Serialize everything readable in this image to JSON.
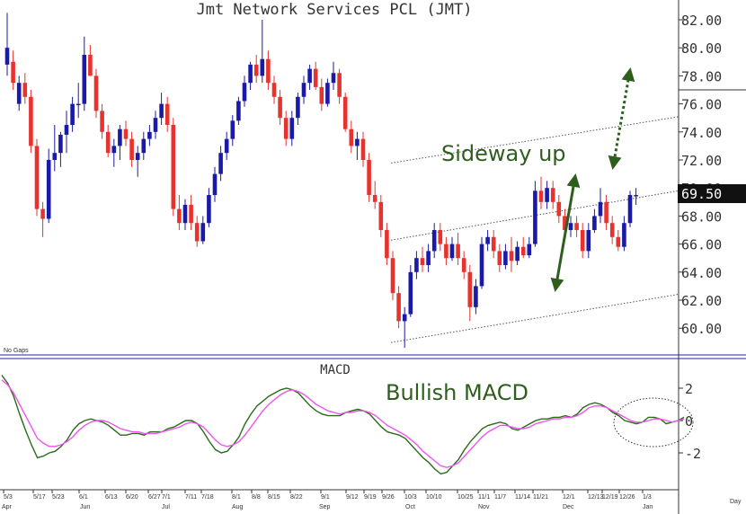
{
  "chart_data": [
    {
      "type": "candlestick",
      "title": "Jmt Network Services PCL (JMT)",
      "y_ticks": [
        "82.00",
        "80.00",
        "78.00",
        "76.00",
        "74.00",
        "72.00",
        "70.00",
        "68.00",
        "66.00",
        "64.00",
        "62.00",
        "60.00"
      ],
      "ylim": [
        58.5,
        83.2
      ],
      "last_price": "69.50",
      "note": "No Gaps",
      "x_ticks": [
        "5/3",
        "5/17",
        "5/23",
        "6/1",
        "6/13",
        "6/20",
        "6/27",
        "7/1",
        "7/11",
        "7/18",
        "8/1",
        "8/8",
        "8/15",
        "8/22",
        "9/1",
        "9/12",
        "9/19",
        "9/26",
        "10/3",
        "10/10",
        "10/25",
        "11/1",
        "11/7",
        "11/14",
        "11/21",
        "12/1",
        "12/13",
        "12/19",
        "12/26",
        "1/3"
      ],
      "months": [
        "Apr",
        "Jun",
        "Jul",
        "Aug",
        "Sep",
        "Oct",
        "Nov",
        "Dec",
        "Jan"
      ],
      "x_unit": "Day",
      "ohlc": [
        {
          "o": 78.8,
          "h": 82.5,
          "l": 78.0,
          "c": 80.0
        },
        {
          "o": 79.0,
          "h": 79.8,
          "l": 77.0,
          "c": 77.5
        },
        {
          "o": 76.0,
          "h": 78.0,
          "l": 75.5,
          "c": 77.5
        },
        {
          "o": 77.5,
          "h": 78.2,
          "l": 76.0,
          "c": 76.5
        },
        {
          "o": 76.5,
          "h": 77.0,
          "l": 72.5,
          "c": 73.0
        },
        {
          "o": 73.0,
          "h": 73.5,
          "l": 68.0,
          "c": 68.5
        },
        {
          "o": 68.5,
          "h": 69.0,
          "l": 66.5,
          "c": 67.8
        },
        {
          "o": 67.8,
          "h": 72.8,
          "l": 67.5,
          "c": 72.0
        },
        {
          "o": 72.0,
          "h": 74.5,
          "l": 71.2,
          "c": 72.5
        },
        {
          "o": 72.5,
          "h": 74.0,
          "l": 71.5,
          "c": 73.8
        },
        {
          "o": 73.8,
          "h": 75.5,
          "l": 72.5,
          "c": 74.5
        },
        {
          "o": 74.5,
          "h": 76.5,
          "l": 74.0,
          "c": 76.0
        },
        {
          "o": 76.0,
          "h": 77.5,
          "l": 75.0,
          "c": 76.0
        },
        {
          "o": 76.0,
          "h": 80.8,
          "l": 75.5,
          "c": 79.5
        },
        {
          "o": 79.5,
          "h": 80.2,
          "l": 78.0,
          "c": 78.0
        },
        {
          "o": 78.0,
          "h": 78.5,
          "l": 75.0,
          "c": 75.5
        },
        {
          "o": 75.5,
          "h": 76.0,
          "l": 73.5,
          "c": 74.0
        },
        {
          "o": 74.0,
          "h": 74.5,
          "l": 72.2,
          "c": 72.5
        },
        {
          "o": 72.5,
          "h": 73.5,
          "l": 71.5,
          "c": 73.0
        },
        {
          "o": 73.0,
          "h": 74.5,
          "l": 72.0,
          "c": 74.2
        },
        {
          "o": 74.2,
          "h": 74.8,
          "l": 73.0,
          "c": 73.5
        },
        {
          "o": 73.5,
          "h": 74.0,
          "l": 71.5,
          "c": 72.0
        },
        {
          "o": 72.0,
          "h": 73.0,
          "l": 70.8,
          "c": 72.5
        },
        {
          "o": 72.5,
          "h": 74.0,
          "l": 72.0,
          "c": 73.5
        },
        {
          "o": 73.5,
          "h": 74.5,
          "l": 73.0,
          "c": 74.0
        },
        {
          "o": 74.0,
          "h": 75.5,
          "l": 73.5,
          "c": 75.0
        },
        {
          "o": 75.0,
          "h": 76.8,
          "l": 74.5,
          "c": 76.0
        },
        {
          "o": 76.0,
          "h": 76.5,
          "l": 74.0,
          "c": 74.5
        },
        {
          "o": 74.5,
          "h": 75.0,
          "l": 68.0,
          "c": 68.5
        },
        {
          "o": 68.5,
          "h": 69.5,
          "l": 67.0,
          "c": 67.5
        },
        {
          "o": 67.5,
          "h": 69.2,
          "l": 67.0,
          "c": 68.8
        },
        {
          "o": 68.8,
          "h": 69.5,
          "l": 67.0,
          "c": 67.5
        },
        {
          "o": 67.5,
          "h": 68.0,
          "l": 65.8,
          "c": 66.2
        },
        {
          "o": 66.2,
          "h": 68.0,
          "l": 66.0,
          "c": 67.5
        },
        {
          "o": 67.5,
          "h": 70.0,
          "l": 67.2,
          "c": 69.5
        },
        {
          "o": 69.5,
          "h": 71.5,
          "l": 69.0,
          "c": 71.0
        },
        {
          "o": 71.0,
          "h": 73.0,
          "l": 70.5,
          "c": 72.5
        },
        {
          "o": 72.5,
          "h": 74.0,
          "l": 72.0,
          "c": 73.5
        },
        {
          "o": 73.5,
          "h": 75.2,
          "l": 73.0,
          "c": 74.8
        },
        {
          "o": 74.8,
          "h": 76.5,
          "l": 74.5,
          "c": 76.2
        },
        {
          "o": 76.2,
          "h": 78.0,
          "l": 75.8,
          "c": 77.5
        },
        {
          "o": 77.5,
          "h": 79.0,
          "l": 77.0,
          "c": 78.8
        },
        {
          "o": 78.8,
          "h": 79.5,
          "l": 77.5,
          "c": 78.0
        },
        {
          "o": 78.0,
          "h": 82.0,
          "l": 77.5,
          "c": 79.2
        },
        {
          "o": 79.2,
          "h": 79.8,
          "l": 77.0,
          "c": 77.5
        },
        {
          "o": 77.5,
          "h": 78.0,
          "l": 76.0,
          "c": 76.5
        },
        {
          "o": 76.5,
          "h": 77.0,
          "l": 74.5,
          "c": 75.0
        },
        {
          "o": 75.0,
          "h": 75.5,
          "l": 73.0,
          "c": 73.5
        },
        {
          "o": 73.5,
          "h": 75.5,
          "l": 73.0,
          "c": 75.0
        },
        {
          "o": 75.0,
          "h": 76.8,
          "l": 74.5,
          "c": 76.5
        },
        {
          "o": 76.5,
          "h": 78.0,
          "l": 76.0,
          "c": 77.5
        },
        {
          "o": 77.5,
          "h": 78.8,
          "l": 77.0,
          "c": 78.5
        },
        {
          "o": 78.5,
          "h": 79.0,
          "l": 77.0,
          "c": 77.2
        },
        {
          "o": 77.2,
          "h": 77.8,
          "l": 75.5,
          "c": 76.0
        },
        {
          "o": 76.0,
          "h": 77.8,
          "l": 75.8,
          "c": 77.5
        },
        {
          "o": 77.5,
          "h": 79.0,
          "l": 77.0,
          "c": 78.2
        },
        {
          "o": 78.2,
          "h": 78.5,
          "l": 76.0,
          "c": 76.5
        },
        {
          "o": 76.5,
          "h": 76.8,
          "l": 74.0,
          "c": 74.2
        },
        {
          "o": 74.2,
          "h": 74.8,
          "l": 72.5,
          "c": 73.0
        },
        {
          "o": 73.0,
          "h": 74.0,
          "l": 72.0,
          "c": 73.5
        },
        {
          "o": 73.5,
          "h": 74.0,
          "l": 71.5,
          "c": 72.0
        },
        {
          "o": 72.0,
          "h": 72.5,
          "l": 69.0,
          "c": 69.5
        },
        {
          "o": 69.5,
          "h": 70.5,
          "l": 68.5,
          "c": 69.0
        },
        {
          "o": 69.0,
          "h": 69.5,
          "l": 66.5,
          "c": 67.0
        },
        {
          "o": 67.0,
          "h": 67.5,
          "l": 64.5,
          "c": 65.0
        },
        {
          "o": 65.0,
          "h": 65.5,
          "l": 62.0,
          "c": 62.5
        },
        {
          "o": 62.5,
          "h": 63.0,
          "l": 60.0,
          "c": 60.5
        },
        {
          "o": 60.5,
          "h": 61.5,
          "l": 58.6,
          "c": 61.0
        },
        {
          "o": 61.0,
          "h": 64.5,
          "l": 60.8,
          "c": 64.0
        },
        {
          "o": 64.0,
          "h": 65.5,
          "l": 63.5,
          "c": 65.0
        },
        {
          "o": 65.0,
          "h": 65.8,
          "l": 64.0,
          "c": 64.5
        },
        {
          "o": 64.5,
          "h": 66.0,
          "l": 64.0,
          "c": 65.5
        },
        {
          "o": 65.5,
          "h": 67.5,
          "l": 65.0,
          "c": 67.0
        },
        {
          "o": 67.0,
          "h": 67.5,
          "l": 65.5,
          "c": 66.0
        },
        {
          "o": 66.0,
          "h": 66.5,
          "l": 64.5,
          "c": 65.0
        },
        {
          "o": 65.0,
          "h": 66.5,
          "l": 64.8,
          "c": 66.0
        },
        {
          "o": 66.0,
          "h": 66.8,
          "l": 64.5,
          "c": 65.0
        },
        {
          "o": 65.0,
          "h": 65.5,
          "l": 63.5,
          "c": 64.0
        },
        {
          "o": 64.0,
          "h": 64.5,
          "l": 60.5,
          "c": 61.5
        },
        {
          "o": 61.5,
          "h": 63.5,
          "l": 61.0,
          "c": 63.0
        },
        {
          "o": 63.0,
          "h": 66.5,
          "l": 62.8,
          "c": 66.0
        },
        {
          "o": 66.0,
          "h": 67.0,
          "l": 65.5,
          "c": 66.5
        },
        {
          "o": 66.5,
          "h": 67.0,
          "l": 65.0,
          "c": 65.5
        },
        {
          "o": 65.5,
          "h": 66.0,
          "l": 64.0,
          "c": 64.5
        },
        {
          "o": 64.5,
          "h": 66.0,
          "l": 64.2,
          "c": 65.5
        },
        {
          "o": 65.5,
          "h": 66.5,
          "l": 64.0,
          "c": 64.8
        },
        {
          "o": 64.8,
          "h": 66.2,
          "l": 64.5,
          "c": 65.8
        },
        {
          "o": 65.8,
          "h": 66.5,
          "l": 65.0,
          "c": 65.2
        },
        {
          "o": 65.2,
          "h": 66.5,
          "l": 65.0,
          "c": 66.0
        },
        {
          "o": 66.0,
          "h": 70.5,
          "l": 65.8,
          "c": 69.8
        },
        {
          "o": 69.8,
          "h": 70.8,
          "l": 68.5,
          "c": 69.0
        },
        {
          "o": 69.0,
          "h": 70.5,
          "l": 68.5,
          "c": 70.0
        },
        {
          "o": 70.0,
          "h": 70.5,
          "l": 68.5,
          "c": 69.0
        },
        {
          "o": 69.0,
          "h": 69.5,
          "l": 67.5,
          "c": 68.0
        },
        {
          "o": 68.0,
          "h": 68.5,
          "l": 66.5,
          "c": 67.0
        },
        {
          "o": 67.0,
          "h": 68.0,
          "l": 66.5,
          "c": 67.5
        },
        {
          "o": 67.5,
          "h": 68.0,
          "l": 66.5,
          "c": 67.0
        },
        {
          "o": 67.0,
          "h": 67.5,
          "l": 65.0,
          "c": 65.5
        },
        {
          "o": 65.5,
          "h": 67.5,
          "l": 65.0,
          "c": 67.0
        },
        {
          "o": 67.0,
          "h": 68.5,
          "l": 66.8,
          "c": 68.0
        },
        {
          "o": 68.0,
          "h": 70.0,
          "l": 67.5,
          "c": 69.0
        },
        {
          "o": 69.0,
          "h": 69.5,
          "l": 67.0,
          "c": 67.5
        },
        {
          "o": 67.5,
          "h": 68.0,
          "l": 66.0,
          "c": 66.5
        },
        {
          "o": 66.5,
          "h": 67.0,
          "l": 65.5,
          "c": 65.8
        },
        {
          "o": 65.8,
          "h": 68.0,
          "l": 65.5,
          "c": 67.5
        },
        {
          "o": 67.5,
          "h": 69.8,
          "l": 67.2,
          "c": 69.5
        },
        {
          "o": 69.5,
          "h": 70.0,
          "l": 68.8,
          "c": 69.5
        }
      ],
      "channel_lines": [
        {
          "from": [
            0,
            59.0
          ],
          "to": [
            110,
            66.8
          ]
        },
        {
          "from": [
            0,
            66.3
          ],
          "to": [
            110,
            74.3
          ]
        },
        {
          "from": [
            0,
            71.8
          ],
          "to": [
            110,
            79.3
          ]
        }
      ],
      "annotations": [
        "Sideway up"
      ]
    },
    {
      "type": "line",
      "title": "MACD",
      "y_ticks": [
        "2",
        "0",
        "-2"
      ],
      "ylim": [
        -4.5,
        3.5
      ],
      "annotations": [
        "Bullish MACD"
      ],
      "series": [
        {
          "values": [
            2.8,
            2.3,
            1.5,
            0.4,
            -0.6,
            -1.5,
            -2.3,
            -2.2,
            -2.0,
            -1.9,
            -1.6,
            -1.2,
            -0.6,
            -0.2,
            0.0,
            0.1,
            0.0,
            -0.1,
            -0.3,
            -0.6,
            -0.9,
            -0.9,
            -0.8,
            -0.8,
            -0.9,
            -0.7,
            -0.7,
            -0.7,
            -0.5,
            -0.4,
            -0.2,
            0.0,
            0.0,
            -0.2,
            -0.7,
            -1.3,
            -1.8,
            -2.0,
            -1.9,
            -1.5,
            -1.0,
            -0.2,
            0.4,
            0.9,
            1.2,
            1.5,
            1.7,
            1.9,
            2.0,
            1.9,
            1.7,
            1.3,
            0.9,
            0.6,
            0.4,
            0.3,
            0.3,
            0.3,
            0.5,
            0.6,
            0.7,
            0.6,
            0.4,
            0.0,
            -0.4,
            -0.7,
            -0.8,
            -0.9,
            -1.1,
            -1.5,
            -1.9,
            -2.3,
            -2.6,
            -3.0,
            -3.3,
            -3.2,
            -2.8,
            -2.4,
            -1.8,
            -1.3,
            -0.9,
            -0.5,
            -0.3,
            -0.2,
            -0.1,
            -0.2,
            -0.5,
            -0.6,
            -0.4,
            -0.2,
            0.0,
            0.1,
            0.1,
            0.2,
            0.2,
            0.3,
            0.2,
            0.4,
            0.8,
            1.0,
            1.1,
            1.0,
            0.8,
            0.5,
            0.3,
            0.0,
            -0.1,
            -0.2,
            -0.1,
            0.2,
            0.2,
            0.1,
            -0.2,
            -0.1,
            0.0,
            0.2
          ]
        },
        {
          "values": [
            2.5,
            2.2,
            1.7,
            1.0,
            0.3,
            -0.4,
            -1.1,
            -1.4,
            -1.6,
            -1.6,
            -1.5,
            -1.3,
            -1.0,
            -0.6,
            -0.3,
            -0.1,
            0.0,
            0.0,
            -0.1,
            -0.3,
            -0.5,
            -0.6,
            -0.7,
            -0.7,
            -0.8,
            -0.8,
            -0.8,
            -0.7,
            -0.6,
            -0.5,
            -0.4,
            -0.2,
            -0.1,
            -0.2,
            -0.4,
            -0.8,
            -1.2,
            -1.5,
            -1.6,
            -1.5,
            -1.3,
            -0.9,
            -0.4,
            0.1,
            0.6,
            1.0,
            1.3,
            1.6,
            1.8,
            1.9,
            1.8,
            1.6,
            1.3,
            1.0,
            0.8,
            0.6,
            0.5,
            0.4,
            0.5,
            0.5,
            0.6,
            0.6,
            0.5,
            0.3,
            0.0,
            -0.3,
            -0.5,
            -0.7,
            -0.9,
            -1.2,
            -1.5,
            -1.9,
            -2.2,
            -2.5,
            -2.8,
            -2.9,
            -2.8,
            -2.6,
            -2.2,
            -1.8,
            -1.4,
            -1.0,
            -0.7,
            -0.5,
            -0.3,
            -0.3,
            -0.4,
            -0.5,
            -0.5,
            -0.4,
            -0.2,
            -0.1,
            0.0,
            0.1,
            0.1,
            0.2,
            0.2,
            0.3,
            0.5,
            0.8,
            0.9,
            0.9,
            0.8,
            0.6,
            0.4,
            0.2,
            0.0,
            -0.1,
            -0.1,
            0.0,
            0.1,
            0.1,
            0.0,
            -0.1,
            0.0,
            0.1
          ]
        }
      ]
    }
  ],
  "colors": {
    "up": "#1a1aa8",
    "down": "#e8322e",
    "macd": "#2a6a1a",
    "signal": "#ee55ee",
    "arrow": "#2e5e1e"
  }
}
